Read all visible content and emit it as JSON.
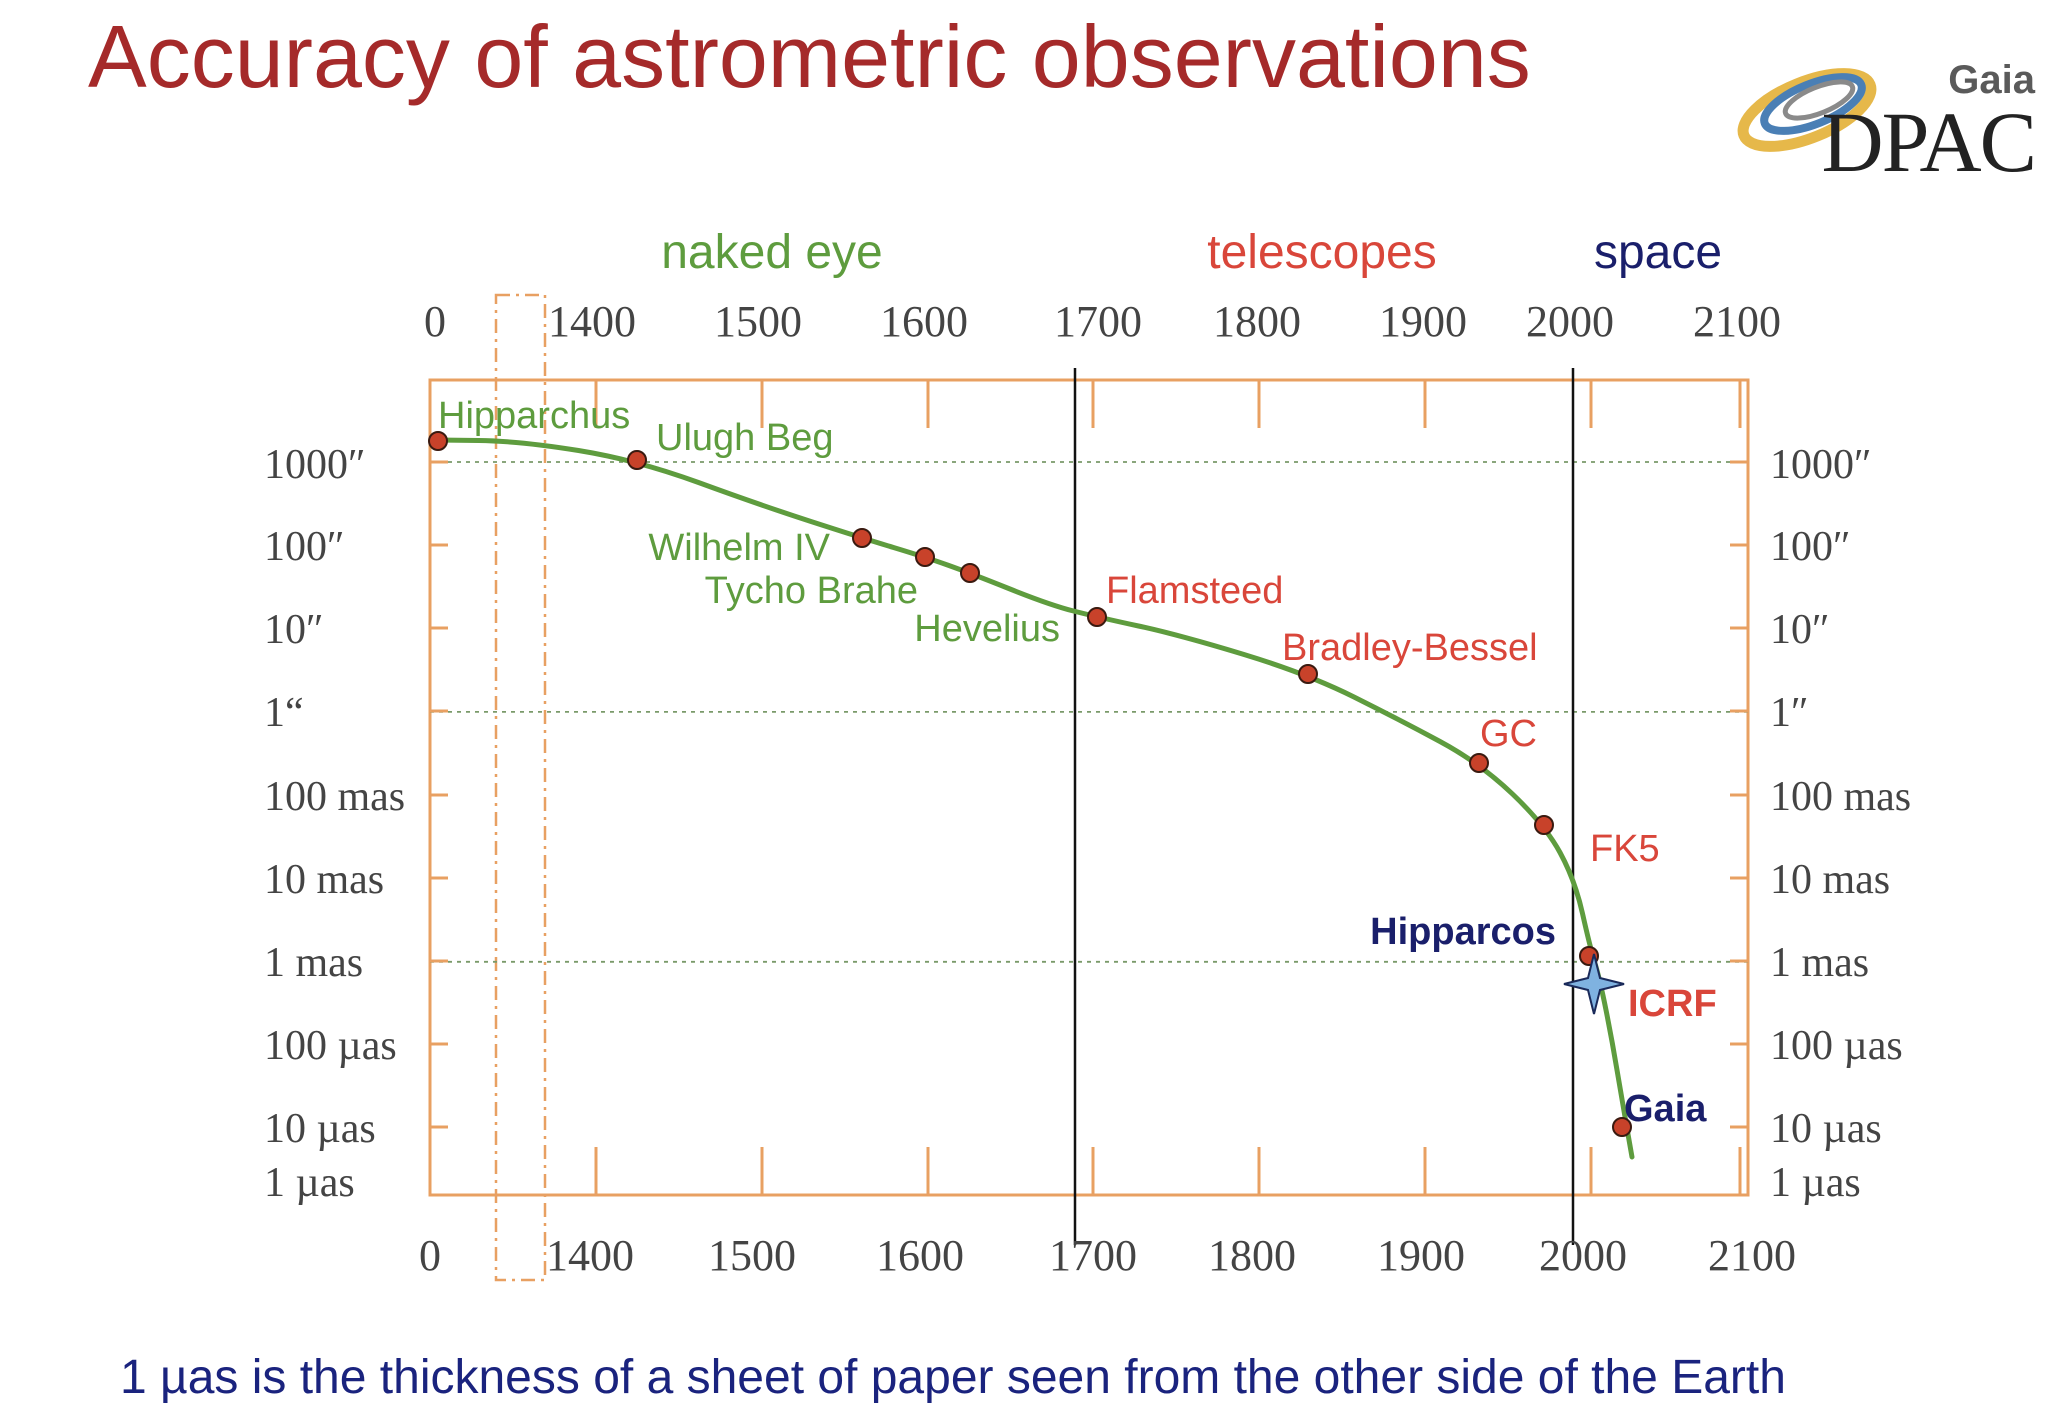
{
  "title": "Accuracy of astrometric observations",
  "logo": {
    "top": "Gaia",
    "bottom": "DPAC"
  },
  "caption": "1 µas is the thickness of a sheet of paper seen from the other side of the Earth",
  "colors": {
    "title": "#a52a2a",
    "axis": "#e8a062",
    "curve": "#5e9c3e",
    "marker": "#c8422a",
    "naked_eye": "#5e9c3e",
    "telescopes": "#d9463a",
    "space": "#1a1f6b"
  },
  "chart_data": {
    "type": "line",
    "eras": [
      {
        "label": "naked eye",
        "color": "#5e9c3e",
        "x": 1580
      },
      {
        "label": "telescopes",
        "color": "#d9463a",
        "x": 1840
      },
      {
        "label": "space",
        "color": "#1a1f6b",
        "x": 2052
      }
    ],
    "x_ticks": [
      "0",
      "1400",
      "1500",
      "1600",
      "1700",
      "1800",
      "1900",
      "2000",
      "2100"
    ],
    "y_ticks": [
      "1000″",
      "100″",
      "10″",
      "1″",
      "100 mas",
      "10 mas",
      "1 mas",
      "100 µas",
      "10 µas",
      "1 µas"
    ],
    "y_ticks_left_1as": "1“",
    "era_boundaries": [
      1700,
      2000
    ],
    "axis_break": "0 to 1400",
    "points": [
      {
        "label": "Hipparchus",
        "x": -130,
        "y_arcsec": 2000,
        "color": "#5e9c3e",
        "bold": false
      },
      {
        "label": "Ulugh Beg",
        "x": 1437,
        "y_arcsec": 1000,
        "color": "#5e9c3e",
        "bold": false
      },
      {
        "label": "Wilhelm IV",
        "x": 1560,
        "y_arcsec": 150,
        "color": "#5e9c3e",
        "bold": false
      },
      {
        "label": "Tycho Brahe",
        "x": 1600,
        "y_arcsec": 95,
        "color": "#5e9c3e",
        "bold": false
      },
      {
        "label": "Hevelius",
        "x": 1660,
        "y_arcsec": 60,
        "color": "#5e9c3e",
        "bold": false
      },
      {
        "label": "Flamsteed",
        "x": 1710,
        "y_arcsec": 12,
        "color": "#d9463a",
        "bold": false
      },
      {
        "label": "Bradley-Bessel",
        "x": 1838,
        "y_arcsec": 2.2,
        "color": "#d9463a",
        "bold": false
      },
      {
        "label": "GC",
        "x": 1940,
        "y_arcsec": 0.2,
        "color": "#d9463a",
        "bold": false
      },
      {
        "label": "FK5",
        "x": 1980,
        "y_arcsec": 0.035,
        "color": "#d9463a",
        "bold": false
      },
      {
        "label": "Hipparcos",
        "x": 2006,
        "y_arcsec": 0.001,
        "color": "#1a1f6b",
        "bold": true
      },
      {
        "label": "Gaia",
        "x": 2027,
        "y_arcsec": 1.1e-05,
        "color": "#1a1f6b",
        "bold": true
      }
    ],
    "icrf": {
      "label": "ICRF",
      "x": 2012,
      "y_arcsec": 0.00035,
      "color": "#d9463a"
    }
  }
}
